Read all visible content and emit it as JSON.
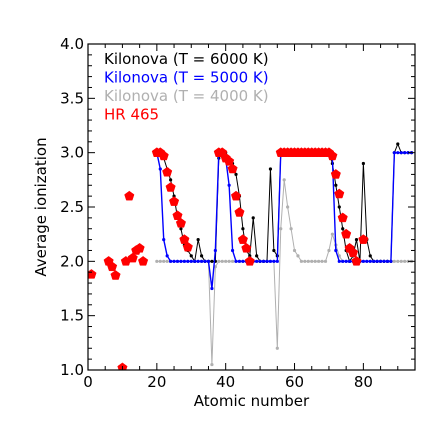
{
  "chart_data": {
    "type": "line",
    "xlabel": "Atomic number",
    "ylabel": "Average ionization",
    "xlim": [
      0,
      95
    ],
    "ylim": [
      1.0,
      4.0
    ],
    "x_ticks": [
      0,
      20,
      40,
      60,
      80
    ],
    "y_ticks": [
      1.0,
      1.5,
      2.0,
      2.5,
      3.0,
      3.5,
      4.0
    ],
    "y_tick_labels": [
      "1.0",
      "1.5",
      "2.0",
      "2.5",
      "3.0",
      "3.5",
      "4.0"
    ],
    "x_tick_labels": [
      "0",
      "20",
      "40",
      "60",
      "80"
    ],
    "minor_ticks": true,
    "legend_position": "top-left",
    "series": [
      {
        "name": "Kilonova (T = 4000 K)",
        "color": "#b0b0b0",
        "marker": "dot",
        "x": [
          20,
          21,
          22,
          23,
          24,
          25,
          26,
          27,
          28,
          29,
          30,
          31,
          32,
          33,
          34,
          35,
          36,
          37,
          38,
          39,
          40,
          41,
          42,
          43,
          44,
          45,
          46,
          47,
          48,
          49,
          50,
          51,
          52,
          53,
          54,
          55,
          56,
          57,
          58,
          59,
          60,
          61,
          62,
          63,
          64,
          65,
          66,
          67,
          68,
          69,
          70,
          71,
          72,
          73,
          74,
          75,
          76,
          77,
          78,
          79,
          80,
          81,
          82,
          83,
          84,
          85,
          86,
          87,
          88,
          89,
          90,
          91,
          92,
          93,
          94
        ],
        "y": [
          2.0,
          2.0,
          2.0,
          2.0,
          2.0,
          2.0,
          2.0,
          2.0,
          2.0,
          2.0,
          2.0,
          2.0,
          2.0,
          2.0,
          2.0,
          2.0,
          1.05,
          1.95,
          2.0,
          2.0,
          2.0,
          2.0,
          2.0,
          2.0,
          2.0,
          2.0,
          2.0,
          2.0,
          2.0,
          2.0,
          2.0,
          2.0,
          2.0,
          2.0,
          2.0,
          1.2,
          2.3,
          2.75,
          2.5,
          2.3,
          2.1,
          2.05,
          2.0,
          2.0,
          2.0,
          2.0,
          2.0,
          2.0,
          2.0,
          2.0,
          2.1,
          2.25,
          2.15,
          2.05,
          2.0,
          2.0,
          2.0,
          2.0,
          2.0,
          2.0,
          2.0,
          2.0,
          2.0,
          2.0,
          2.0,
          2.0,
          2.0,
          2.0,
          2.0,
          2.0,
          2.0,
          2.0,
          2.0,
          2.0,
          2.0
        ]
      },
      {
        "name": "Kilonova (T = 6000 K)",
        "color": "#000000",
        "marker": "dot",
        "x": [
          20,
          21,
          22,
          23,
          24,
          25,
          26,
          27,
          28,
          29,
          30,
          31,
          32,
          33,
          34,
          35,
          36,
          37,
          38,
          39,
          40,
          41,
          42,
          43,
          44,
          45,
          46,
          47,
          48,
          49,
          50,
          51,
          52,
          53,
          54,
          55,
          56,
          57,
          58,
          59,
          60,
          61,
          62,
          63,
          64,
          65,
          66,
          67,
          68,
          69,
          70,
          71,
          72,
          73,
          74,
          75,
          76,
          77,
          78,
          79,
          80,
          81,
          82,
          83,
          84,
          85,
          86,
          87,
          88,
          89,
          90,
          91,
          92,
          93,
          94
        ],
        "y": [
          3.0,
          3.0,
          2.95,
          2.85,
          2.75,
          2.6,
          2.4,
          2.3,
          2.15,
          2.1,
          2.05,
          2.0,
          2.2,
          2.05,
          2.0,
          2.0,
          2.0,
          2.0,
          2.95,
          3.0,
          3.0,
          2.95,
          2.9,
          2.8,
          2.6,
          2.3,
          2.1,
          2.05,
          2.4,
          2.05,
          2.0,
          2.0,
          2.0,
          2.85,
          2.1,
          2.05,
          3.0,
          3.0,
          3.0,
          3.0,
          3.0,
          3.0,
          3.0,
          3.0,
          3.0,
          3.0,
          3.0,
          3.0,
          3.0,
          3.0,
          3.0,
          2.9,
          2.7,
          2.5,
          2.3,
          2.1,
          2.0,
          2.05,
          2.2,
          2.0,
          2.9,
          2.2,
          2.05,
          2.0,
          2.0,
          2.0,
          2.0,
          2.0,
          2.0,
          3.0,
          3.08,
          3.0,
          3.0,
          3.0,
          3.0
        ]
      },
      {
        "name": "Kilonova (T = 5000 K)",
        "color": "#0000ff",
        "marker": "dot",
        "x": [
          20,
          21,
          22,
          23,
          24,
          25,
          26,
          27,
          28,
          29,
          30,
          31,
          32,
          33,
          34,
          35,
          36,
          37,
          38,
          39,
          40,
          41,
          42,
          43,
          44,
          45,
          46,
          47,
          48,
          49,
          50,
          51,
          52,
          53,
          54,
          55,
          56,
          57,
          58,
          59,
          60,
          61,
          62,
          63,
          64,
          65,
          66,
          67,
          68,
          69,
          70,
          71,
          72,
          73,
          74,
          75,
          76,
          77,
          78,
          79,
          80,
          81,
          82,
          83,
          84,
          85,
          86,
          87,
          88,
          89,
          90,
          91,
          92,
          93,
          94
        ],
        "y": [
          3.0,
          2.85,
          2.2,
          2.05,
          2.0,
          2.0,
          2.0,
          2.0,
          2.0,
          2.0,
          2.0,
          2.0,
          2.0,
          2.0,
          2.0,
          2.0,
          1.75,
          2.1,
          3.0,
          3.0,
          2.95,
          2.7,
          2.1,
          2.0,
          2.0,
          2.0,
          2.0,
          2.0,
          2.0,
          2.0,
          2.0,
          2.0,
          2.0,
          2.0,
          2.0,
          2.0,
          3.0,
          3.0,
          3.0,
          3.0,
          3.0,
          3.0,
          3.0,
          3.0,
          3.0,
          3.0,
          3.0,
          3.0,
          3.0,
          3.0,
          3.0,
          2.95,
          2.1,
          2.0,
          2.0,
          2.0,
          2.0,
          2.0,
          2.0,
          2.0,
          2.0,
          2.0,
          2.0,
          2.0,
          2.0,
          2.0,
          2.0,
          2.0,
          2.0,
          3.0,
          3.0,
          3.0,
          3.0,
          3.0,
          3.0
        ]
      },
      {
        "name": "HR 465",
        "color": "#ff0000",
        "marker": "pentagon",
        "x": [
          1,
          6,
          7,
          8,
          10,
          11,
          12,
          13,
          14,
          15,
          16,
          20,
          21,
          22,
          23,
          24,
          25,
          26,
          27,
          28,
          29,
          38,
          39,
          40,
          41,
          42,
          43,
          44,
          45,
          46,
          47,
          56,
          57,
          58,
          59,
          60,
          61,
          62,
          63,
          64,
          65,
          66,
          67,
          68,
          69,
          70,
          71,
          72,
          73,
          74,
          75,
          76,
          77,
          78,
          80
        ],
        "y": [
          1.88,
          2.0,
          1.95,
          1.87,
          1.02,
          2.0,
          2.6,
          2.03,
          2.1,
          2.12,
          2.0,
          3.0,
          3.0,
          2.97,
          2.82,
          2.68,
          2.55,
          2.42,
          2.35,
          2.2,
          2.13,
          3.0,
          3.0,
          2.95,
          2.92,
          2.85,
          2.6,
          2.45,
          2.2,
          2.12,
          2.0,
          3.0,
          3.0,
          3.0,
          3.0,
          3.0,
          3.0,
          3.0,
          3.0,
          3.0,
          3.0,
          3.0,
          3.0,
          3.0,
          3.0,
          3.0,
          2.97,
          2.8,
          2.62,
          2.4,
          2.25,
          2.12,
          2.08,
          2.0,
          2.2
        ]
      }
    ],
    "legend": [
      {
        "label": "Kilonova (T = 6000 K)",
        "color": "#000000"
      },
      {
        "label": "Kilonova (T = 5000 K)",
        "color": "#0000ff"
      },
      {
        "label": "Kilonova (T = 4000 K)",
        "color": "#b0b0b0"
      },
      {
        "label": "HR 465",
        "color": "#ff0000"
      }
    ]
  }
}
